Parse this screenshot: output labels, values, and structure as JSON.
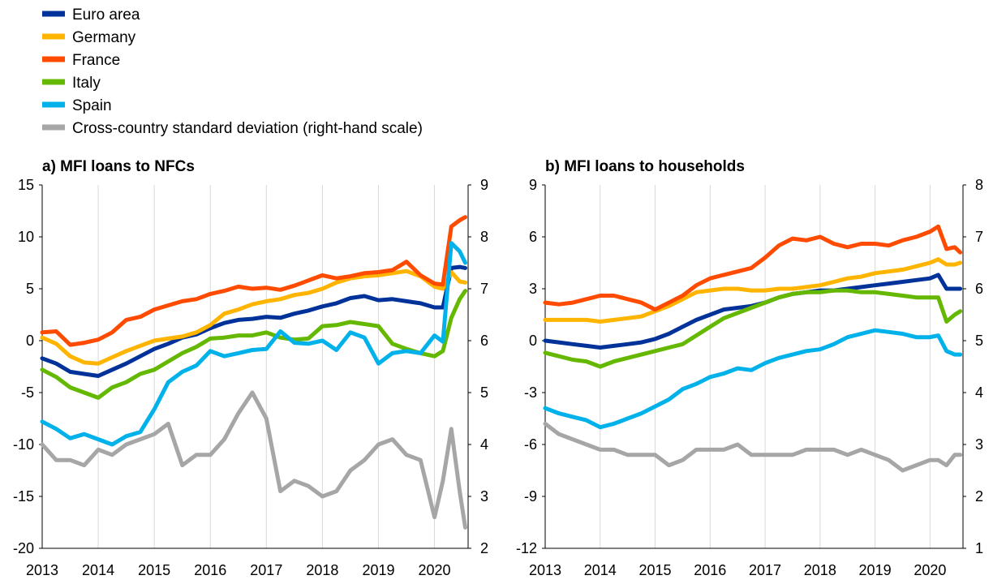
{
  "legend": [
    {
      "label": "Euro area",
      "color": "#003299"
    },
    {
      "label": "Germany",
      "color": "#FFB400"
    },
    {
      "label": "France",
      "color": "#FF4B00"
    },
    {
      "label": "Italy",
      "color": "#65B800"
    },
    {
      "label": "Spain",
      "color": "#00B1EA"
    },
    {
      "label": "Cross-country standard deviation (right-hand scale)",
      "color": "#A6A6A6"
    }
  ],
  "chart_data": [
    {
      "type": "line",
      "title": "a) MFI loans to NFCs",
      "x_ticks": [
        "2013",
        "2014",
        "2015",
        "2016",
        "2017",
        "2018",
        "2019",
        "2020"
      ],
      "y_ticks_left": [
        "15",
        "10",
        "5",
        "0",
        "-5",
        "-10",
        "-15",
        "-20"
      ],
      "y_ticks_right": [
        "9",
        "8",
        "7",
        "6",
        "5",
        "4",
        "3",
        "2"
      ],
      "ylim_left": [
        -20,
        15
      ],
      "ylim_right": [
        2,
        9
      ],
      "xlim": [
        2013.0,
        2020.6
      ],
      "series": [
        {
          "name": "Euro area",
          "axis": "left",
          "x": [
            2013.0,
            2013.25,
            2013.5,
            2013.75,
            2014.0,
            2014.25,
            2014.5,
            2014.75,
            2015.0,
            2015.25,
            2015.5,
            2015.75,
            2016.0,
            2016.25,
            2016.5,
            2016.75,
            2017.0,
            2017.25,
            2017.5,
            2017.75,
            2018.0,
            2018.25,
            2018.5,
            2018.75,
            2019.0,
            2019.25,
            2019.5,
            2019.75,
            2020.0,
            2020.15,
            2020.3,
            2020.45,
            2020.55
          ],
          "y": [
            -1.7,
            -2.2,
            -3.0,
            -3.2,
            -3.4,
            -2.8,
            -2.2,
            -1.5,
            -0.8,
            -0.3,
            0.3,
            0.6,
            1.2,
            1.7,
            2.0,
            2.1,
            2.3,
            2.2,
            2.6,
            2.9,
            3.3,
            3.6,
            4.1,
            4.3,
            3.9,
            4.0,
            3.8,
            3.6,
            3.2,
            3.2,
            7.0,
            7.1,
            7.0
          ]
        },
        {
          "name": "Germany",
          "axis": "left",
          "x": [
            2013.0,
            2013.25,
            2013.5,
            2013.75,
            2014.0,
            2014.25,
            2014.5,
            2014.75,
            2015.0,
            2015.25,
            2015.5,
            2015.75,
            2016.0,
            2016.25,
            2016.5,
            2016.75,
            2017.0,
            2017.25,
            2017.5,
            2017.75,
            2018.0,
            2018.25,
            2018.5,
            2018.75,
            2019.0,
            2019.25,
            2019.5,
            2019.75,
            2020.0,
            2020.15,
            2020.3,
            2020.45,
            2020.55
          ],
          "y": [
            0.3,
            -0.3,
            -1.5,
            -2.1,
            -2.2,
            -1.6,
            -1.0,
            -0.5,
            0.0,
            0.2,
            0.4,
            0.8,
            1.5,
            2.6,
            3.0,
            3.5,
            3.8,
            4.0,
            4.4,
            4.6,
            5.0,
            5.6,
            6.0,
            6.2,
            6.3,
            6.5,
            6.7,
            6.2,
            5.2,
            5.0,
            6.6,
            5.7,
            5.6
          ]
        },
        {
          "name": "France",
          "axis": "left",
          "x": [
            2013.0,
            2013.25,
            2013.5,
            2013.75,
            2014.0,
            2014.25,
            2014.5,
            2014.75,
            2015.0,
            2015.25,
            2015.5,
            2015.75,
            2016.0,
            2016.25,
            2016.5,
            2016.75,
            2017.0,
            2017.25,
            2017.5,
            2017.75,
            2018.0,
            2018.25,
            2018.5,
            2018.75,
            2019.0,
            2019.25,
            2019.5,
            2019.75,
            2020.0,
            2020.15,
            2020.3,
            2020.45,
            2020.55
          ],
          "y": [
            0.8,
            0.9,
            -0.4,
            -0.2,
            0.1,
            0.8,
            2.0,
            2.3,
            3.0,
            3.4,
            3.8,
            4.0,
            4.5,
            4.8,
            5.2,
            5.0,
            5.1,
            4.9,
            5.3,
            5.8,
            6.3,
            6.0,
            6.2,
            6.5,
            6.6,
            6.8,
            7.6,
            6.3,
            5.5,
            5.4,
            11.0,
            11.6,
            11.9
          ]
        },
        {
          "name": "Italy",
          "axis": "left",
          "x": [
            2013.0,
            2013.25,
            2013.5,
            2013.75,
            2014.0,
            2014.25,
            2014.5,
            2014.75,
            2015.0,
            2015.25,
            2015.5,
            2015.75,
            2016.0,
            2016.25,
            2016.5,
            2016.75,
            2017.0,
            2017.25,
            2017.5,
            2017.75,
            2018.0,
            2018.25,
            2018.5,
            2018.75,
            2019.0,
            2019.25,
            2019.5,
            2019.75,
            2020.0,
            2020.15,
            2020.3,
            2020.45,
            2020.55
          ],
          "y": [
            -2.8,
            -3.5,
            -4.5,
            -5.0,
            -5.5,
            -4.5,
            -4.0,
            -3.2,
            -2.8,
            -2.0,
            -1.2,
            -0.6,
            0.2,
            0.3,
            0.5,
            0.5,
            0.8,
            0.3,
            0.1,
            0.2,
            1.4,
            1.5,
            1.8,
            1.6,
            1.4,
            -0.3,
            -0.8,
            -1.2,
            -1.5,
            -1.0,
            2.2,
            4.0,
            4.8
          ]
        },
        {
          "name": "Spain",
          "axis": "left",
          "x": [
            2013.0,
            2013.25,
            2013.5,
            2013.75,
            2014.0,
            2014.25,
            2014.5,
            2014.75,
            2015.0,
            2015.25,
            2015.5,
            2015.75,
            2016.0,
            2016.25,
            2016.5,
            2016.75,
            2017.0,
            2017.25,
            2017.5,
            2017.75,
            2018.0,
            2018.25,
            2018.5,
            2018.75,
            2019.0,
            2019.25,
            2019.5,
            2019.75,
            2020.0,
            2020.15,
            2020.3,
            2020.45,
            2020.55
          ],
          "y": [
            -7.8,
            -8.5,
            -9.4,
            -9.0,
            -9.5,
            -10.0,
            -9.2,
            -8.8,
            -6.6,
            -4.0,
            -3.0,
            -2.4,
            -1.0,
            -1.5,
            -1.2,
            -0.9,
            -0.8,
            0.9,
            -0.2,
            -0.3,
            0.0,
            -0.9,
            0.8,
            0.3,
            -2.2,
            -1.2,
            -1.0,
            -1.2,
            0.5,
            -0.1,
            9.4,
            8.6,
            7.5
          ]
        },
        {
          "name": "Cross-country standard deviation (right-hand scale)",
          "axis": "right",
          "x": [
            2013.0,
            2013.25,
            2013.5,
            2013.75,
            2014.0,
            2014.25,
            2014.5,
            2014.75,
            2015.0,
            2015.25,
            2015.5,
            2015.75,
            2016.0,
            2016.25,
            2016.5,
            2016.75,
            2017.0,
            2017.25,
            2017.5,
            2017.75,
            2018.0,
            2018.25,
            2018.5,
            2018.75,
            2019.0,
            2019.25,
            2019.5,
            2019.75,
            2020.0,
            2020.15,
            2020.3,
            2020.45,
            2020.55
          ],
          "y": [
            4.0,
            3.7,
            3.7,
            3.6,
            3.9,
            3.8,
            4.0,
            4.1,
            4.2,
            4.4,
            3.6,
            3.8,
            3.8,
            4.1,
            4.6,
            5.0,
            4.5,
            3.1,
            3.3,
            3.2,
            3.0,
            3.1,
            3.5,
            3.7,
            4.0,
            4.1,
            3.8,
            3.7,
            2.6,
            3.3,
            4.3,
            3.1,
            2.4
          ]
        }
      ]
    },
    {
      "type": "line",
      "title": "b) MFI loans to households",
      "x_ticks": [
        "2013",
        "2014",
        "2015",
        "2016",
        "2017",
        "2018",
        "2019",
        "2020"
      ],
      "y_ticks_left": [
        "9",
        "6",
        "3",
        "0",
        "-3",
        "-6",
        "-9",
        "-12"
      ],
      "y_ticks_right": [
        "8",
        "7",
        "6",
        "5",
        "4",
        "3",
        "2",
        "1"
      ],
      "ylim_left": [
        -12,
        9
      ],
      "ylim_right": [
        1,
        8
      ],
      "xlim": [
        2013.0,
        2020.6
      ],
      "series": [
        {
          "name": "Euro area",
          "axis": "left",
          "x": [
            2013.0,
            2013.25,
            2013.5,
            2013.75,
            2014.0,
            2014.25,
            2014.5,
            2014.75,
            2015.0,
            2015.25,
            2015.5,
            2015.75,
            2016.0,
            2016.25,
            2016.5,
            2016.75,
            2017.0,
            2017.25,
            2017.5,
            2017.75,
            2018.0,
            2018.25,
            2018.5,
            2018.75,
            2019.0,
            2019.25,
            2019.5,
            2019.75,
            2020.0,
            2020.15,
            2020.3,
            2020.45,
            2020.55
          ],
          "y": [
            0.0,
            -0.1,
            -0.2,
            -0.3,
            -0.4,
            -0.3,
            -0.2,
            -0.1,
            0.1,
            0.4,
            0.8,
            1.2,
            1.5,
            1.8,
            1.9,
            2.0,
            2.2,
            2.5,
            2.7,
            2.8,
            2.9,
            2.9,
            3.0,
            3.1,
            3.2,
            3.3,
            3.4,
            3.5,
            3.6,
            3.8,
            3.0,
            3.0,
            3.0
          ]
        },
        {
          "name": "Germany",
          "axis": "left",
          "x": [
            2013.0,
            2013.25,
            2013.5,
            2013.75,
            2014.0,
            2014.25,
            2014.5,
            2014.75,
            2015.0,
            2015.25,
            2015.5,
            2015.75,
            2016.0,
            2016.25,
            2016.5,
            2016.75,
            2017.0,
            2017.25,
            2017.5,
            2017.75,
            2018.0,
            2018.25,
            2018.5,
            2018.75,
            2019.0,
            2019.25,
            2019.5,
            2019.75,
            2020.0,
            2020.15,
            2020.3,
            2020.45,
            2020.55
          ],
          "y": [
            1.2,
            1.2,
            1.2,
            1.2,
            1.1,
            1.2,
            1.3,
            1.4,
            1.7,
            2.0,
            2.4,
            2.8,
            2.9,
            3.0,
            3.0,
            2.9,
            2.9,
            3.0,
            3.0,
            3.1,
            3.2,
            3.4,
            3.6,
            3.7,
            3.9,
            4.0,
            4.1,
            4.3,
            4.5,
            4.7,
            4.4,
            4.4,
            4.5
          ]
        },
        {
          "name": "France",
          "axis": "left",
          "x": [
            2013.0,
            2013.25,
            2013.5,
            2013.75,
            2014.0,
            2014.25,
            2014.5,
            2014.75,
            2015.0,
            2015.25,
            2015.5,
            2015.75,
            2016.0,
            2016.25,
            2016.5,
            2016.75,
            2017.0,
            2017.25,
            2017.5,
            2017.75,
            2018.0,
            2018.25,
            2018.5,
            2018.75,
            2019.0,
            2019.25,
            2019.5,
            2019.75,
            2020.0,
            2020.15,
            2020.3,
            2020.45,
            2020.55
          ],
          "y": [
            2.2,
            2.1,
            2.2,
            2.4,
            2.6,
            2.6,
            2.4,
            2.2,
            1.8,
            2.2,
            2.6,
            3.2,
            3.6,
            3.8,
            4.0,
            4.2,
            4.8,
            5.5,
            5.9,
            5.8,
            6.0,
            5.6,
            5.4,
            5.6,
            5.6,
            5.5,
            5.8,
            6.0,
            6.3,
            6.6,
            5.3,
            5.4,
            5.1
          ]
        },
        {
          "name": "Italy",
          "axis": "left",
          "x": [
            2013.0,
            2013.25,
            2013.5,
            2013.75,
            2014.0,
            2014.25,
            2014.5,
            2014.75,
            2015.0,
            2015.25,
            2015.5,
            2015.75,
            2016.0,
            2016.25,
            2016.5,
            2016.75,
            2017.0,
            2017.25,
            2017.5,
            2017.75,
            2018.0,
            2018.25,
            2018.5,
            2018.75,
            2019.0,
            2019.25,
            2019.5,
            2019.75,
            2020.0,
            2020.15,
            2020.3,
            2020.45,
            2020.55
          ],
          "y": [
            -0.7,
            -0.9,
            -1.1,
            -1.2,
            -1.5,
            -1.2,
            -1.0,
            -0.8,
            -0.6,
            -0.4,
            -0.2,
            0.3,
            0.8,
            1.3,
            1.6,
            1.9,
            2.2,
            2.5,
            2.7,
            2.8,
            2.8,
            2.9,
            2.9,
            2.8,
            2.8,
            2.7,
            2.6,
            2.5,
            2.5,
            2.5,
            1.1,
            1.5,
            1.7
          ]
        },
        {
          "name": "Spain",
          "axis": "left",
          "x": [
            2013.0,
            2013.25,
            2013.5,
            2013.75,
            2014.0,
            2014.25,
            2014.5,
            2014.75,
            2015.0,
            2015.25,
            2015.5,
            2015.75,
            2016.0,
            2016.25,
            2016.5,
            2016.75,
            2017.0,
            2017.25,
            2017.5,
            2017.75,
            2018.0,
            2018.25,
            2018.5,
            2018.75,
            2019.0,
            2019.25,
            2019.5,
            2019.75,
            2020.0,
            2020.15,
            2020.3,
            2020.45,
            2020.55
          ],
          "y": [
            -3.9,
            -4.2,
            -4.4,
            -4.6,
            -5.0,
            -4.8,
            -4.5,
            -4.2,
            -3.8,
            -3.4,
            -2.8,
            -2.5,
            -2.1,
            -1.9,
            -1.6,
            -1.7,
            -1.3,
            -1.0,
            -0.8,
            -0.6,
            -0.5,
            -0.2,
            0.2,
            0.4,
            0.6,
            0.5,
            0.4,
            0.2,
            0.2,
            0.3,
            -0.6,
            -0.8,
            -0.8
          ]
        },
        {
          "name": "Cross-country standard deviation (right-hand scale)",
          "axis": "right",
          "x": [
            2013.0,
            2013.25,
            2013.5,
            2013.75,
            2014.0,
            2014.25,
            2014.5,
            2014.75,
            2015.0,
            2015.25,
            2015.5,
            2015.75,
            2016.0,
            2016.25,
            2016.5,
            2016.75,
            2017.0,
            2017.25,
            2017.5,
            2017.75,
            2018.0,
            2018.25,
            2018.5,
            2018.75,
            2019.0,
            2019.25,
            2019.5,
            2019.75,
            2020.0,
            2020.15,
            2020.3,
            2020.45,
            2020.55
          ],
          "y": [
            3.4,
            3.2,
            3.1,
            3.0,
            2.9,
            2.9,
            2.8,
            2.8,
            2.8,
            2.6,
            2.7,
            2.9,
            2.9,
            2.9,
            3.0,
            2.8,
            2.8,
            2.8,
            2.8,
            2.9,
            2.9,
            2.9,
            2.8,
            2.9,
            2.8,
            2.7,
            2.5,
            2.6,
            2.7,
            2.7,
            2.6,
            2.8,
            2.8
          ]
        }
      ]
    }
  ]
}
